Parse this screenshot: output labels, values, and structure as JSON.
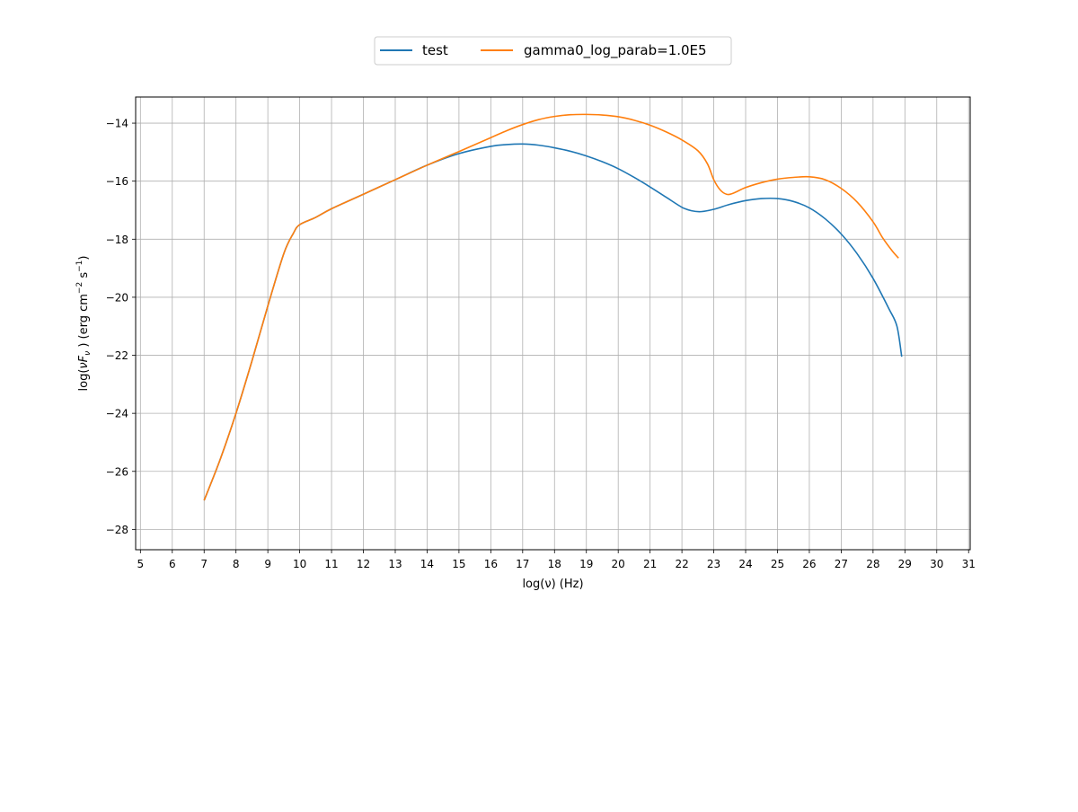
{
  "chart_data": {
    "type": "line",
    "title": "",
    "xlabel": "log(ν)  (Hz)",
    "ylabel_parts": {
      "prefix": "log(",
      "nu": "ν",
      "F": "F",
      "sub": "ν",
      "mid": " )  (erg cm",
      "exp1": "−2",
      "s": "  s",
      "exp2": "−1",
      "suffix": ")"
    },
    "xlim": [
      4.85,
      31.05
    ],
    "ylim": [
      -28.7,
      -13.1
    ],
    "xticks": [
      5,
      6,
      7,
      8,
      9,
      10,
      11,
      12,
      13,
      14,
      15,
      16,
      17,
      18,
      19,
      20,
      21,
      22,
      23,
      24,
      25,
      26,
      27,
      28,
      29,
      30,
      31
    ],
    "yticks": [
      -28,
      -26,
      -24,
      -22,
      -20,
      -18,
      -16,
      -14
    ],
    "grid": true,
    "legend_position": "top-center",
    "series": [
      {
        "name": "test",
        "color": "#1f77b4",
        "x": [
          7.0,
          7.5,
          8.0,
          8.5,
          9.0,
          9.5,
          9.8,
          10.0,
          10.5,
          11.0,
          12.0,
          13.0,
          14.0,
          15.0,
          16.0,
          16.5,
          17.0,
          17.5,
          18.0,
          18.5,
          19.0,
          19.5,
          20.0,
          20.5,
          21.0,
          21.5,
          22.0,
          22.3,
          22.6,
          23.0,
          23.5,
          24.0,
          24.5,
          25.0,
          25.5,
          26.0,
          26.5,
          27.0,
          27.5,
          28.0,
          28.5,
          28.75,
          28.9
        ],
        "y": [
          -27.0,
          -25.6,
          -24.0,
          -22.2,
          -20.3,
          -18.5,
          -17.8,
          -17.5,
          -17.25,
          -16.95,
          -16.45,
          -15.95,
          -15.45,
          -15.05,
          -14.8,
          -14.74,
          -14.72,
          -14.76,
          -14.85,
          -14.97,
          -15.13,
          -15.33,
          -15.57,
          -15.87,
          -16.2,
          -16.55,
          -16.9,
          -17.02,
          -17.05,
          -16.97,
          -16.8,
          -16.67,
          -16.6,
          -16.6,
          -16.7,
          -16.92,
          -17.3,
          -17.82,
          -18.5,
          -19.35,
          -20.4,
          -21.0,
          -22.05
        ]
      },
      {
        "name": "gamma0_log_parab=1.0E5",
        "color": "#ff7f0e",
        "x": [
          7.0,
          7.5,
          8.0,
          8.5,
          9.0,
          9.5,
          9.8,
          10.0,
          10.5,
          11.0,
          12.0,
          13.0,
          14.0,
          15.0,
          16.0,
          16.5,
          17.0,
          17.5,
          18.0,
          18.5,
          19.0,
          19.5,
          20.0,
          20.5,
          21.0,
          21.5,
          22.0,
          22.5,
          22.8,
          23.0,
          23.2,
          23.4,
          23.6,
          24.0,
          24.5,
          25.0,
          25.5,
          26.0,
          26.5,
          27.0,
          27.5,
          28.0,
          28.3,
          28.6,
          28.8
        ],
        "y": [
          -27.0,
          -25.6,
          -24.0,
          -22.2,
          -20.3,
          -18.5,
          -17.8,
          -17.5,
          -17.25,
          -16.95,
          -16.45,
          -15.95,
          -15.45,
          -14.98,
          -14.5,
          -14.26,
          -14.05,
          -13.88,
          -13.77,
          -13.71,
          -13.7,
          -13.72,
          -13.78,
          -13.9,
          -14.07,
          -14.3,
          -14.58,
          -14.95,
          -15.4,
          -15.95,
          -16.3,
          -16.45,
          -16.42,
          -16.22,
          -16.05,
          -15.93,
          -15.87,
          -15.85,
          -15.95,
          -16.25,
          -16.72,
          -17.4,
          -17.95,
          -18.4,
          -18.65
        ]
      }
    ]
  }
}
